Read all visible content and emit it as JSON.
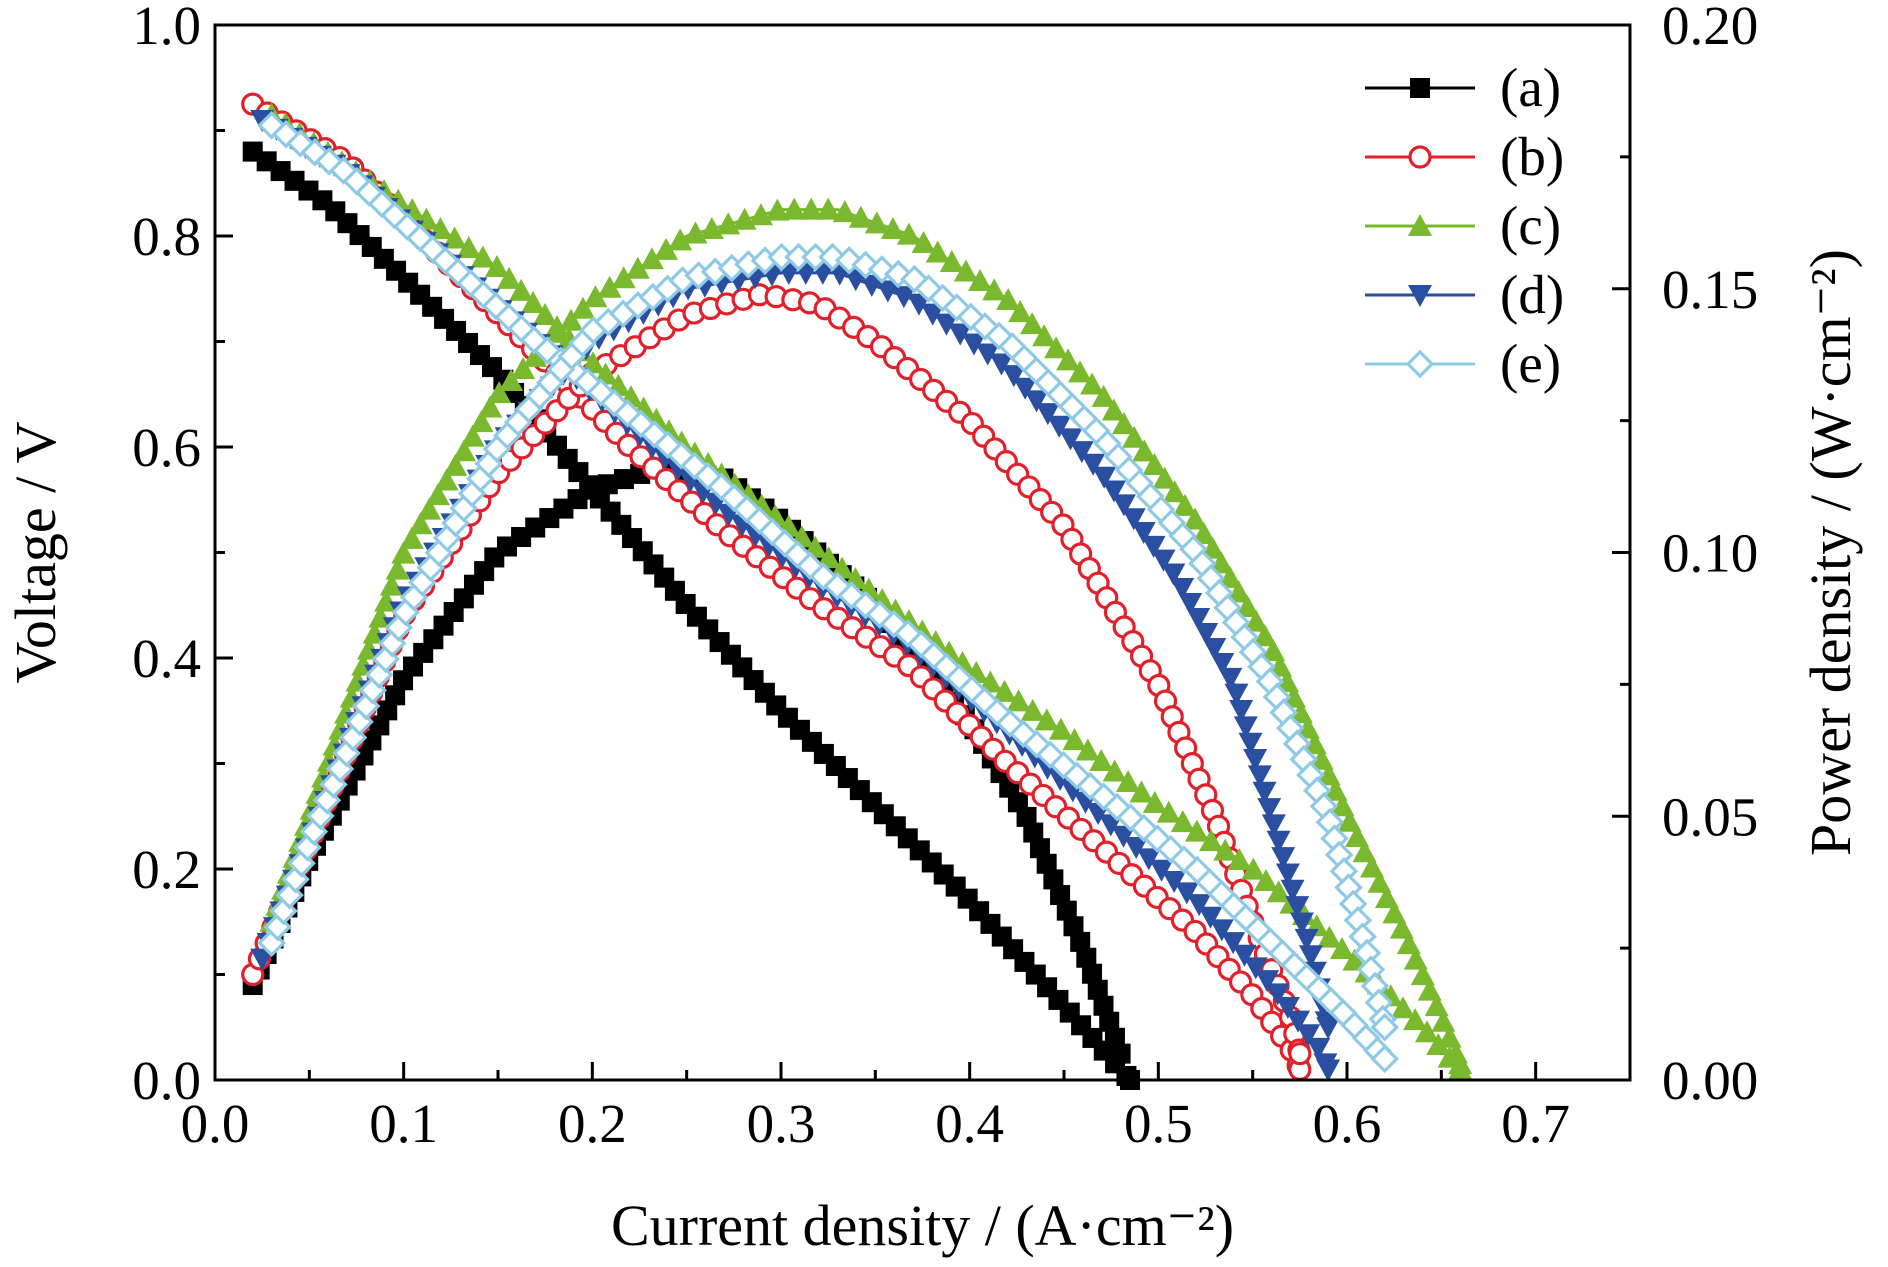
{
  "chart_data": {
    "type": "line",
    "xlabel": "Current density / (A·cm⁻²)",
    "ylabel_left": "Voltage / V",
    "ylabel_right": "Power density / (W·cm⁻²)",
    "xlim": [
      0.0,
      0.75
    ],
    "ylim_left": [
      0.0,
      1.0
    ],
    "ylim_right": [
      0.0,
      0.2
    ],
    "x_ticks": [
      "0.0",
      "0.1",
      "0.2",
      "0.3",
      "0.4",
      "0.5",
      "0.6",
      "0.7"
    ],
    "y_left_ticks": [
      "0.0",
      "0.2",
      "0.4",
      "0.6",
      "0.8",
      "1.0"
    ],
    "y_right_ticks": [
      "0.00",
      "0.05",
      "0.10",
      "0.15",
      "0.20"
    ],
    "legend_position": "top-right",
    "series": [
      {
        "name": "(a)",
        "color": "#000000",
        "marker": "square-filled",
        "voltage": [
          [
            0.02,
            0.88
          ],
          [
            0.06,
            0.83
          ],
          [
            0.1,
            0.76
          ],
          [
            0.15,
            0.67
          ],
          [
            0.2,
            0.56
          ],
          [
            0.25,
            0.45
          ],
          [
            0.3,
            0.35
          ],
          [
            0.35,
            0.26
          ],
          [
            0.4,
            0.17
          ],
          [
            0.45,
            0.07
          ],
          [
            0.475,
            0.02
          ],
          [
            0.485,
            0.0
          ]
        ],
        "power": [
          [
            0.02,
            0.018
          ],
          [
            0.05,
            0.042
          ],
          [
            0.1,
            0.076
          ],
          [
            0.15,
            0.1
          ],
          [
            0.2,
            0.112
          ],
          [
            0.235,
            0.116
          ],
          [
            0.27,
            0.114
          ],
          [
            0.3,
            0.106
          ],
          [
            0.35,
            0.09
          ],
          [
            0.4,
            0.068
          ],
          [
            0.43,
            0.05
          ],
          [
            0.46,
            0.025
          ],
          [
            0.48,
            0.005
          ]
        ]
      },
      {
        "name": "(b)",
        "color": "#e0202a",
        "marker": "circle-open",
        "voltage": [
          [
            0.02,
            0.925
          ],
          [
            0.07,
            0.87
          ],
          [
            0.12,
            0.78
          ],
          [
            0.17,
            0.69
          ],
          [
            0.22,
            0.6
          ],
          [
            0.27,
            0.52
          ],
          [
            0.32,
            0.45
          ],
          [
            0.37,
            0.39
          ],
          [
            0.42,
            0.3
          ],
          [
            0.47,
            0.22
          ],
          [
            0.52,
            0.14
          ],
          [
            0.55,
            0.08
          ],
          [
            0.57,
            0.03
          ],
          [
            0.575,
            0.01
          ]
        ],
        "power": [
          [
            0.02,
            0.02
          ],
          [
            0.05,
            0.045
          ],
          [
            0.1,
            0.088
          ],
          [
            0.15,
            0.115
          ],
          [
            0.2,
            0.134
          ],
          [
            0.25,
            0.145
          ],
          [
            0.29,
            0.149
          ],
          [
            0.32,
            0.147
          ],
          [
            0.35,
            0.14
          ],
          [
            0.4,
            0.125
          ],
          [
            0.45,
            0.105
          ],
          [
            0.5,
            0.075
          ],
          [
            0.53,
            0.05
          ],
          [
            0.55,
            0.03
          ],
          [
            0.57,
            0.012
          ],
          [
            0.575,
            0.005
          ]
        ]
      },
      {
        "name": "(c)",
        "color": "#7ab82e",
        "marker": "triangle-up-filled",
        "voltage": [
          [
            0.03,
            0.915
          ],
          [
            0.1,
            0.83
          ],
          [
            0.15,
            0.77
          ],
          [
            0.2,
            0.68
          ],
          [
            0.25,
            0.6
          ],
          [
            0.3,
            0.53
          ],
          [
            0.35,
            0.46
          ],
          [
            0.4,
            0.39
          ],
          [
            0.45,
            0.33
          ],
          [
            0.5,
            0.26
          ],
          [
            0.55,
            0.2
          ],
          [
            0.6,
            0.12
          ],
          [
            0.64,
            0.05
          ],
          [
            0.66,
            0.01
          ]
        ],
        "power": [
          [
            0.03,
            0.03
          ],
          [
            0.1,
            0.1
          ],
          [
            0.15,
            0.13
          ],
          [
            0.2,
            0.148
          ],
          [
            0.25,
            0.16
          ],
          [
            0.3,
            0.165
          ],
          [
            0.33,
            0.165
          ],
          [
            0.37,
            0.16
          ],
          [
            0.42,
            0.148
          ],
          [
            0.47,
            0.13
          ],
          [
            0.52,
            0.106
          ],
          [
            0.56,
            0.082
          ],
          [
            0.6,
            0.05
          ],
          [
            0.63,
            0.028
          ],
          [
            0.65,
            0.012
          ],
          [
            0.66,
            0.003
          ]
        ]
      },
      {
        "name": "(d)",
        "color": "#2a4fa0",
        "marker": "triangle-down-filled",
        "voltage": [
          [
            0.025,
            0.91
          ],
          [
            0.07,
            0.86
          ],
          [
            0.12,
            0.78
          ],
          [
            0.17,
            0.7
          ],
          [
            0.22,
            0.62
          ],
          [
            0.27,
            0.54
          ],
          [
            0.32,
            0.47
          ],
          [
            0.37,
            0.41
          ],
          [
            0.42,
            0.33
          ],
          [
            0.47,
            0.25
          ],
          [
            0.52,
            0.17
          ],
          [
            0.56,
            0.09
          ],
          [
            0.585,
            0.03
          ],
          [
            0.59,
            0.01
          ]
        ],
        "power": [
          [
            0.025,
            0.023
          ],
          [
            0.05,
            0.045
          ],
          [
            0.1,
            0.09
          ],
          [
            0.15,
            0.12
          ],
          [
            0.2,
            0.14
          ],
          [
            0.25,
            0.15
          ],
          [
            0.3,
            0.153
          ],
          [
            0.33,
            0.153
          ],
          [
            0.37,
            0.148
          ],
          [
            0.42,
            0.135
          ],
          [
            0.47,
            0.115
          ],
          [
            0.51,
            0.095
          ],
          [
            0.54,
            0.075
          ],
          [
            0.56,
            0.05
          ],
          [
            0.58,
            0.025
          ],
          [
            0.59,
            0.01
          ]
        ]
      },
      {
        "name": "(e)",
        "color": "#8ecae6",
        "marker": "diamond-open",
        "voltage": [
          [
            0.03,
            0.905
          ],
          [
            0.07,
            0.86
          ],
          [
            0.12,
            0.78
          ],
          [
            0.17,
            0.7
          ],
          [
            0.22,
            0.63
          ],
          [
            0.27,
            0.56
          ],
          [
            0.32,
            0.48
          ],
          [
            0.37,
            0.42
          ],
          [
            0.42,
            0.34
          ],
          [
            0.47,
            0.27
          ],
          [
            0.52,
            0.2
          ],
          [
            0.56,
            0.13
          ],
          [
            0.6,
            0.06
          ],
          [
            0.62,
            0.02
          ]
        ],
        "power": [
          [
            0.03,
            0.026
          ],
          [
            0.05,
            0.045
          ],
          [
            0.1,
            0.088
          ],
          [
            0.15,
            0.12
          ],
          [
            0.2,
            0.142
          ],
          [
            0.25,
            0.152
          ],
          [
            0.3,
            0.156
          ],
          [
            0.33,
            0.156
          ],
          [
            0.37,
            0.152
          ],
          [
            0.42,
            0.14
          ],
          [
            0.47,
            0.122
          ],
          [
            0.52,
            0.1
          ],
          [
            0.56,
            0.075
          ],
          [
            0.59,
            0.05
          ],
          [
            0.61,
            0.025
          ],
          [
            0.62,
            0.01
          ]
        ]
      }
    ]
  }
}
